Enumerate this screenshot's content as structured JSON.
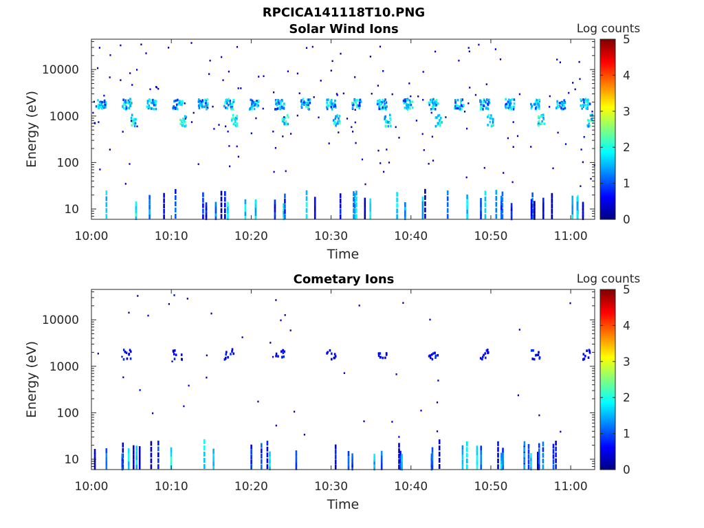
{
  "figure": {
    "title": "RPCICA141118T10.PNG"
  },
  "colorbar": {
    "label": "Log counts",
    "range": [
      0,
      5
    ],
    "ticks": [
      "0",
      "1",
      "2",
      "3",
      "4",
      "5"
    ],
    "colormap": "jet"
  },
  "chart_data": [
    {
      "type": "heatmap",
      "title": "Solar Wind Ions",
      "xlabel": "Time",
      "ylabel": "Energy (eV)",
      "y_scale": "log",
      "ylim": [
        6,
        45000
      ],
      "xlim": [
        "10:00",
        "11:03"
      ],
      "x_tick_labels": [
        "10:00",
        "10:10",
        "10:20",
        "10:30",
        "10:40",
        "10:50",
        "11:00"
      ],
      "y_tick_labels": [
        "10",
        "100",
        "1000",
        "10000"
      ],
      "color_label": "Log counts",
      "clim": [
        0,
        5
      ],
      "main_beam": {
        "note_times_min": [
          1.2,
          4.5,
          7.5,
          10.8,
          14.0,
          17.2,
          20.4,
          23.6,
          26.8,
          30.0,
          33.2,
          36.4,
          39.6,
          42.8,
          46.0,
          49.2,
          52.4,
          55.6,
          58.8,
          61.8
        ],
        "energy_center_eV": 1800,
        "peak_log_counts": 2.0,
        "tail_every_other": true,
        "tail_energy_eV": 800
      },
      "low_energy_band": {
        "energy_range_eV": [
          6,
          28
        ],
        "peak_log_counts": 1.8
      }
    },
    {
      "type": "heatmap",
      "title": "Cometary Ions",
      "xlabel": "Time",
      "ylabel": "Energy (eV)",
      "y_scale": "log",
      "ylim": [
        6,
        45000
      ],
      "xlim": [
        "10:00",
        "11:03"
      ],
      "x_tick_labels": [
        "10:00",
        "10:10",
        "10:20",
        "10:30",
        "10:40",
        "10:50",
        "11:00"
      ],
      "y_tick_labels": [
        "10",
        "100",
        "1000",
        "10000"
      ],
      "color_label": "Log counts",
      "clim": [
        0,
        5
      ],
      "main_beam": {
        "times_min": [
          4.5,
          10.8,
          17.2,
          23.6,
          30.0,
          36.4,
          42.8,
          49.2,
          55.6,
          61.8
        ],
        "energy_center_eV": 1800,
        "peak_log_counts": 0.8
      },
      "low_energy_band": {
        "energy_range_eV": [
          6,
          28
        ],
        "peak_log_counts": 1.8
      }
    }
  ]
}
